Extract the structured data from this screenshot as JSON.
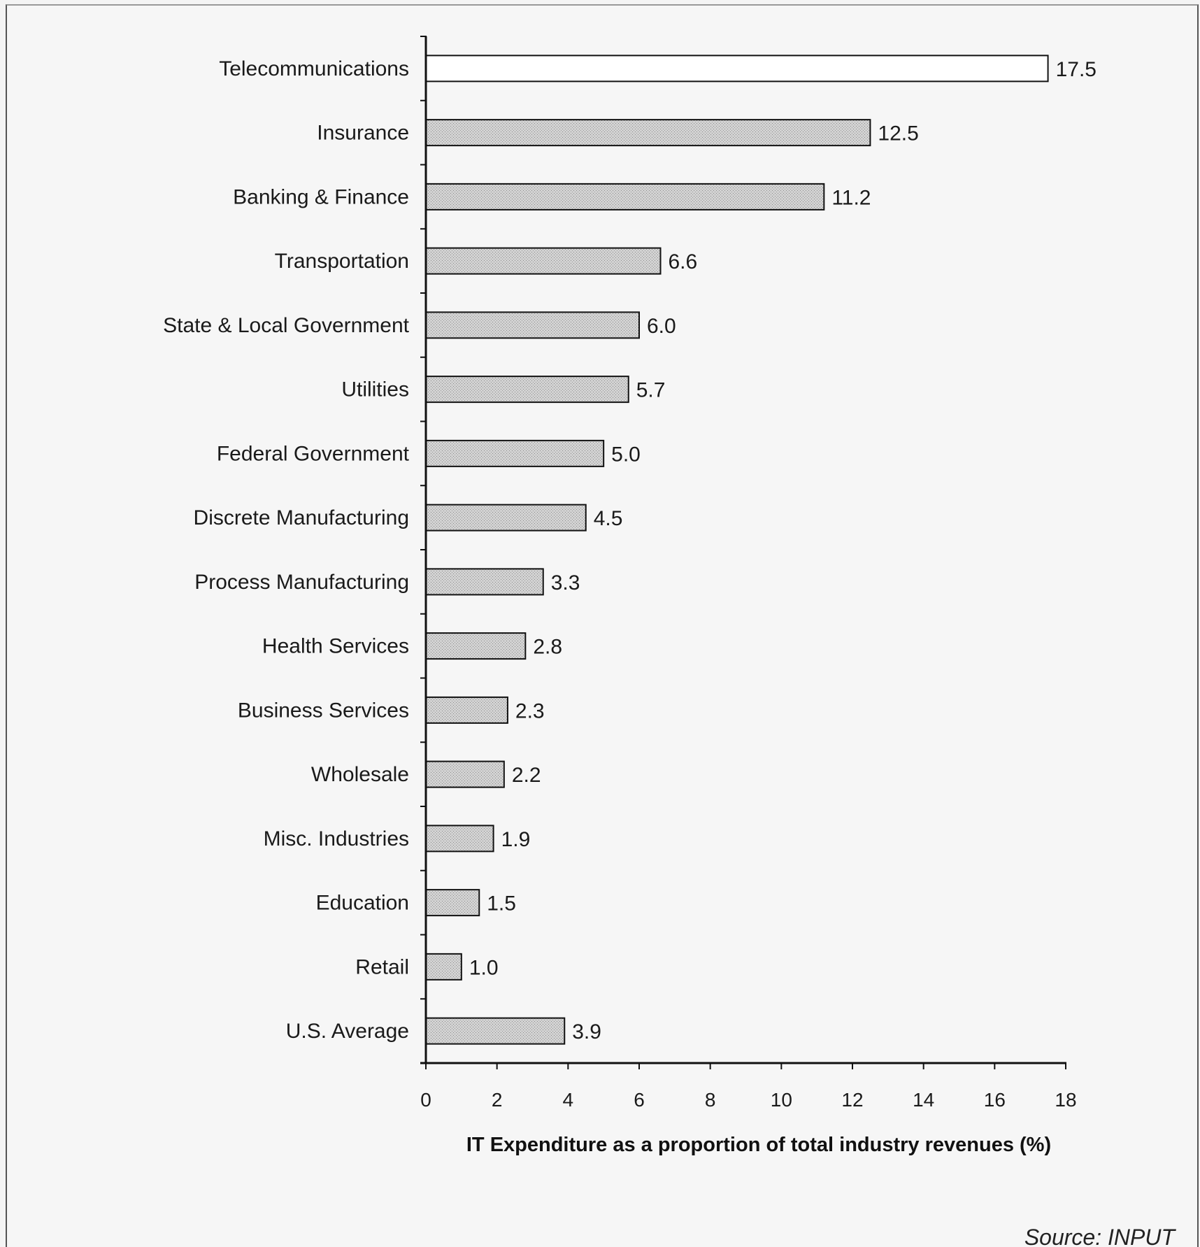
{
  "chart_data": {
    "type": "bar",
    "orientation": "horizontal",
    "categories": [
      "Telecommunications",
      "Insurance",
      "Banking & Finance",
      "Transportation",
      "State & Local Government",
      "Utilities",
      "Federal Government",
      "Discrete Manufacturing",
      "Process Manufacturing",
      "Health Services",
      "Business Services",
      "Wholesale",
      "Misc. Industries",
      "Education",
      "Retail",
      "U.S. Average"
    ],
    "values": [
      17.5,
      12.5,
      11.2,
      6.6,
      6.0,
      5.7,
      5.0,
      4.5,
      3.3,
      2.8,
      2.3,
      2.2,
      1.9,
      1.5,
      1.0,
      3.9
    ],
    "value_labels": [
      "17.5",
      "12.5",
      "11.2",
      "6.6",
      "6.0",
      "5.7",
      "5.0",
      "4.5",
      "3.3",
      "2.8",
      "2.3",
      "2.2",
      "1.9",
      "1.5",
      "1.0",
      "3.9"
    ],
    "highlighted_category": "Telecommunications",
    "title": "",
    "xlabel": "IT Expenditure as a proportion of total industry revenues (%)",
    "ylabel": "",
    "xlim": [
      0,
      18
    ],
    "xticks": [
      "0",
      "2",
      "4",
      "6",
      "8",
      "10",
      "12",
      "14",
      "16",
      "18"
    ],
    "grid": false,
    "colors": {
      "highlight_fill": "#ffffff",
      "bar_fill": "#c8c8c8",
      "bar_stroke": "#111111",
      "axis": "#111111"
    }
  },
  "source": "Source: INPUT"
}
